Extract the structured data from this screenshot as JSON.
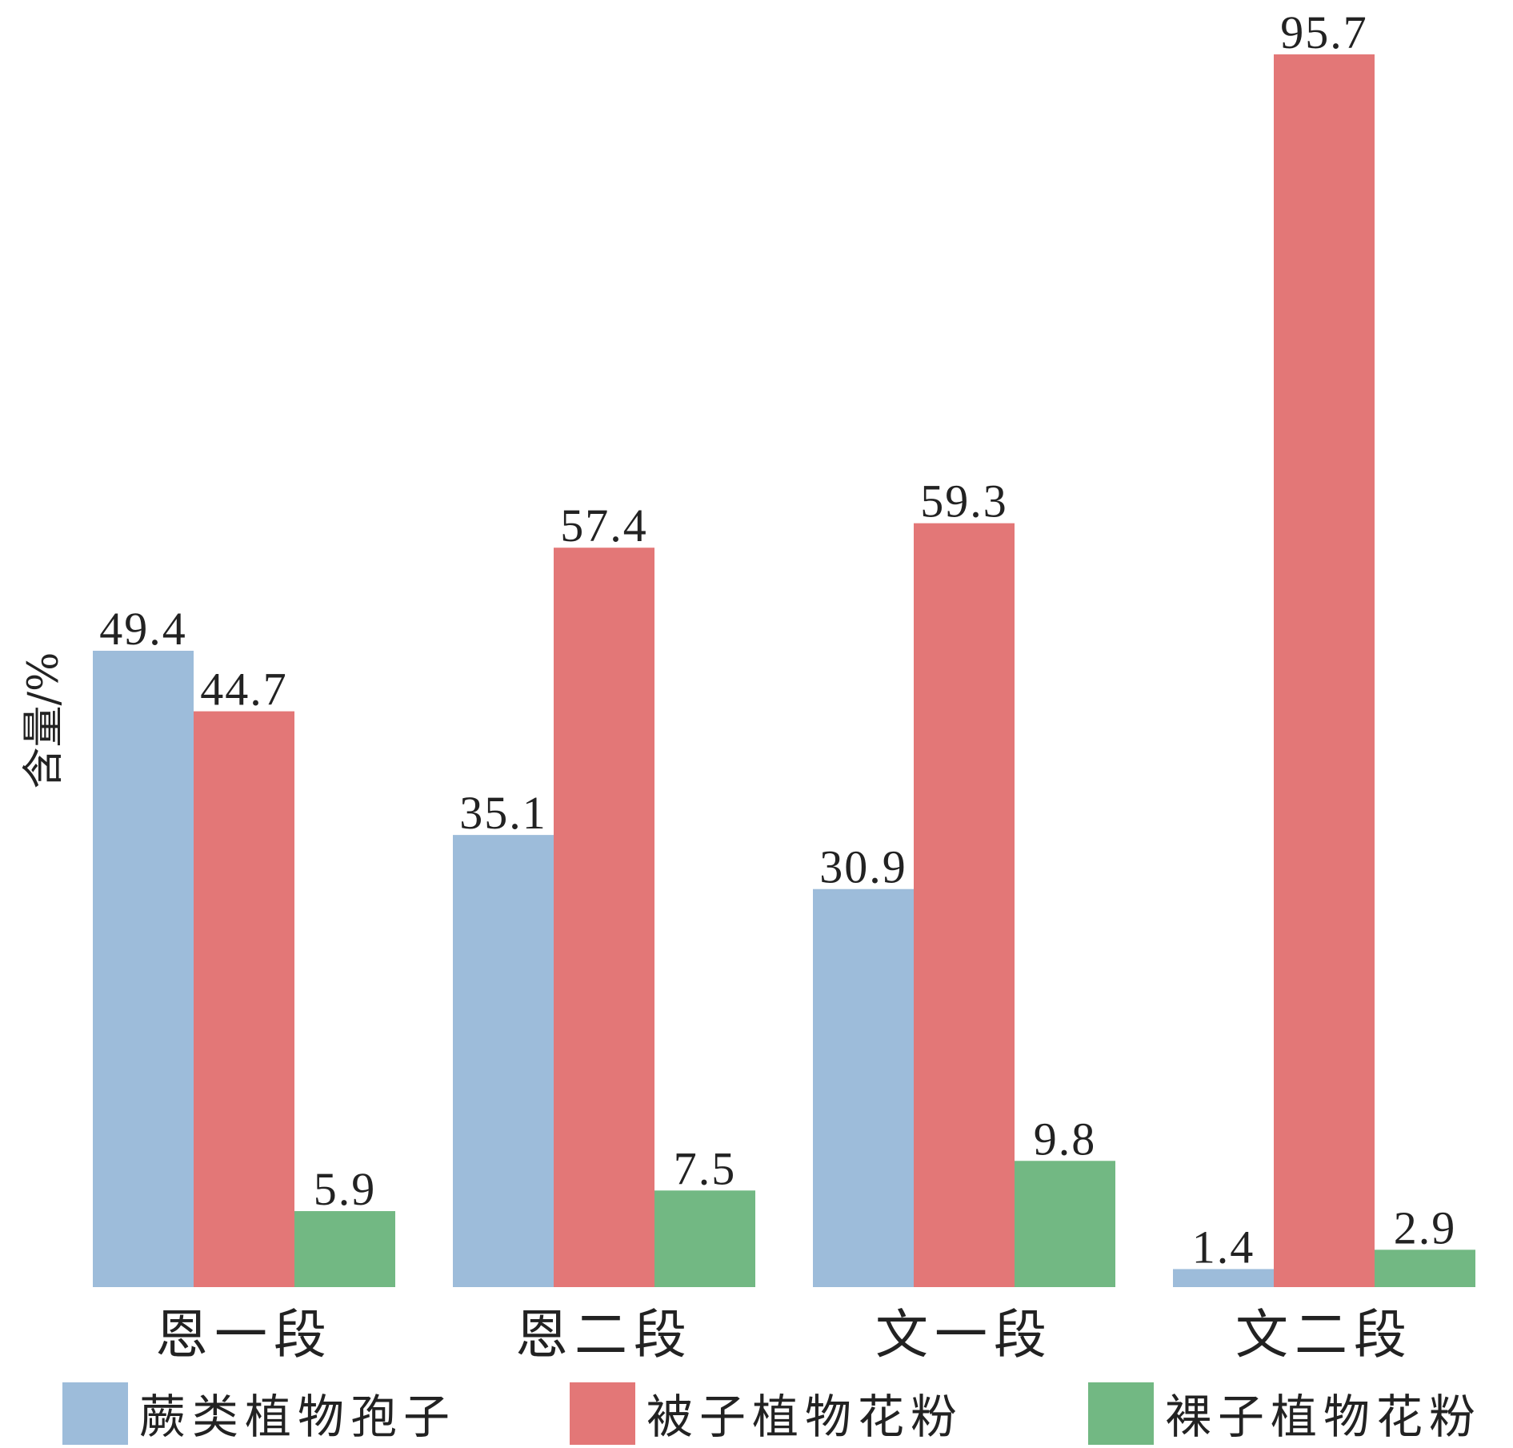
{
  "chart_data": {
    "type": "bar",
    "ylabel": "含量/%",
    "ylim": [
      0,
      100
    ],
    "grid": false,
    "legend_position": "bottom",
    "categories": [
      "恩一段",
      "恩二段",
      "文一段",
      "文二段"
    ],
    "series": [
      {
        "name": "蕨类植物孢子",
        "color": "#9dbcda",
        "values": [
          49.4,
          35.1,
          30.9,
          1.4
        ]
      },
      {
        "name": "被子植物花粉",
        "color": "#e37777",
        "values": [
          44.7,
          57.4,
          59.3,
          95.7
        ]
      },
      {
        "name": "裸子植物花粉",
        "color": "#72b883",
        "values": [
          5.9,
          7.5,
          9.8,
          2.9
        ]
      }
    ]
  }
}
